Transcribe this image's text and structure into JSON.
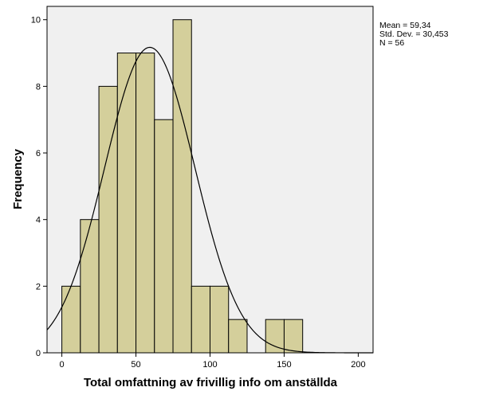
{
  "chart_data": {
    "type": "bar",
    "subtype": "histogram",
    "xlabel": "Total omfattning av frivillig info om anställda",
    "ylabel": "Frequency",
    "xlim": [
      -10,
      210
    ],
    "ylim": [
      0,
      10.4
    ],
    "xticks": [
      0,
      50,
      100,
      150,
      200
    ],
    "yticks": [
      0,
      2,
      4,
      6,
      8,
      10
    ],
    "bin_width": 12.5,
    "bins": [
      {
        "start": 0,
        "end": 12.5,
        "count": 2
      },
      {
        "start": 12.5,
        "end": 25,
        "count": 4
      },
      {
        "start": 25,
        "end": 37.5,
        "count": 8
      },
      {
        "start": 37.5,
        "end": 50,
        "count": 9
      },
      {
        "start": 50,
        "end": 62.5,
        "count": 9
      },
      {
        "start": 62.5,
        "end": 75,
        "count": 7
      },
      {
        "start": 75,
        "end": 87.5,
        "count": 10
      },
      {
        "start": 87.5,
        "end": 100,
        "count": 2
      },
      {
        "start": 100,
        "end": 112.5,
        "count": 2
      },
      {
        "start": 112.5,
        "end": 125,
        "count": 1
      },
      {
        "start": 125,
        "end": 137.5,
        "count": 0
      },
      {
        "start": 137.5,
        "end": 150,
        "count": 1
      },
      {
        "start": 150,
        "end": 162.5,
        "count": 1
      }
    ],
    "normal_curve": {
      "mean": 59.34,
      "std": 30.453,
      "n": 56
    },
    "stats_lines": [
      "Mean = 59,34",
      "Std. Dev. = 30,453",
      "N = 56"
    ],
    "grid": false,
    "colors": {
      "bar_fill": "#d4cf9b",
      "bar_stroke": "#000000",
      "plot_bg": "#f0f0f0",
      "curve": "#000000"
    }
  }
}
